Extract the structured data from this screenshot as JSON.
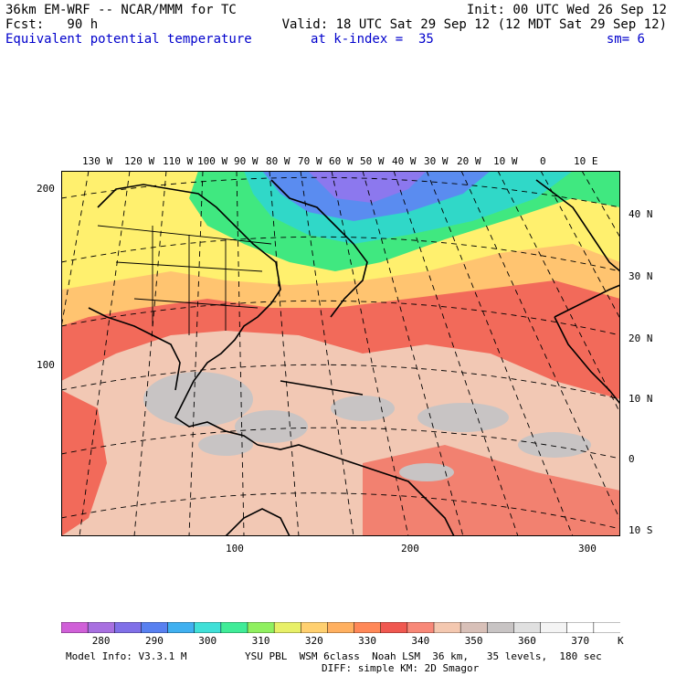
{
  "header": {
    "line1_left": "36km EM-WRF -- NCAR/MMM for TC",
    "line1_right": "Init: 00 UTC Wed 26 Sep 12",
    "line2_left": "Fcst:   90 h",
    "line2_right": "Valid: 18 UTC Sat 29 Sep 12 (12 MDT Sat 29 Sep 12)",
    "line3_left": "Equivalent potential temperature",
    "line3_mid": "at k-index =  35",
    "line3_right": "sm= 6"
  },
  "map": {
    "longitude_labels": [
      "130 W",
      "120 W",
      "110 W",
      "100 W",
      "90 W",
      "80 W",
      "70 W",
      "60 W",
      "50 W",
      "40 W",
      "30 W",
      "20 W",
      "10 W",
      "0",
      "10 E"
    ],
    "latitude_labels": [
      "40 N",
      "30 N",
      "20 N",
      "10 N",
      "0",
      "10 S"
    ],
    "y_grid_labels": [
      "200",
      "100"
    ],
    "x_grid_labels": [
      "100",
      "200",
      "300"
    ],
    "colors": {
      "ocean_tropics": "#f2c8b4",
      "warm_band": "#f26a5a",
      "cold_purple": "#8c78ee",
      "cold_blue": "#5a8cf0",
      "teal": "#30d8c8",
      "green": "#40e880",
      "yellow": "#fff06e",
      "orange": "#ffc470",
      "grey_patch": "#c8c4c4"
    }
  },
  "colorbar": {
    "colors": [
      "#d060d8",
      "#a870e0",
      "#8070e8",
      "#5880f0",
      "#40b0f0",
      "#40e0d8",
      "#40ec98",
      "#90f060",
      "#e8f068",
      "#ffd070",
      "#ffb060",
      "#ff8858",
      "#f05850",
      "#f88878",
      "#f4c8b0",
      "#d8c0b8",
      "#c8c4c4",
      "#e0e0e0",
      "#f4f4f4",
      "#ffffff",
      "#ffffff"
    ],
    "labels": [
      "280",
      "290",
      "300",
      "310",
      "320",
      "330",
      "340",
      "350",
      "360",
      "370"
    ],
    "unit": "K"
  },
  "footer": {
    "model_info": "Model Info: V3.3.1 M",
    "physics_line1": "YSU PBL  WSM 6class  Noah LSM  36 km,   35 levels,  180 sec",
    "physics_line2": "DIFF: simple KM: 2D Smagor"
  }
}
